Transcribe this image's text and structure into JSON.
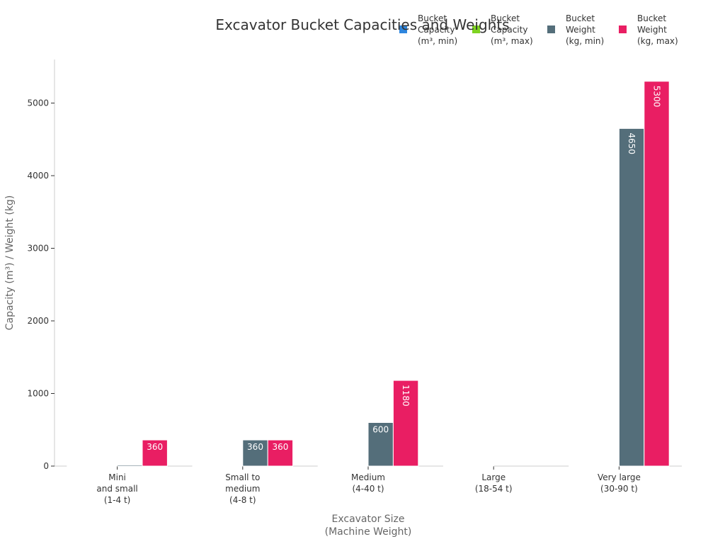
{
  "chart_data": {
    "type": "bar",
    "title": "Excavator Bucket Capacities and Weights",
    "xlabel": "Excavator Size\n(Machine Weight)",
    "ylabel": "Capacity (m³) / Weight (kg)",
    "categories": [
      "Mini\nand small\n(1-4 t)",
      "Small to\nmedium\n(4-8 t)",
      "Medium\n(4-40 t)",
      "Large\n(18-54 t)",
      "Very large\n(30-90 t)"
    ],
    "series": [
      {
        "name": "Bucket\nCapacity\n(m³, min)",
        "color": "#2E86DE",
        "values": [
          0.04,
          0.2,
          0.45,
          1.0,
          2.0
        ]
      },
      {
        "name": "Bucket\nCapacity\n(m³, max)",
        "color": "#7ED321",
        "values": [
          0.15,
          0.35,
          2.0,
          3.0,
          6.0
        ]
      },
      {
        "name": "Bucket\nWeight\n(kg, min)",
        "color": "#546E7A",
        "values": [
          15,
          360,
          600,
          0,
          4650
        ]
      },
      {
        "name": "Bucket\nWeight\n(kg, max)",
        "color": "#E91E63",
        "values": [
          360,
          360,
          1180,
          0,
          5300
        ]
      }
    ],
    "data_labels": {
      "shown": [
        [
          null,
          null,
          null,
          "360"
        ],
        [
          null,
          null,
          "360",
          "360"
        ],
        [
          null,
          null,
          "600",
          "1180"
        ],
        [
          null,
          null,
          null,
          null
        ],
        [
          null,
          null,
          "4650",
          "5300"
        ]
      ],
      "vertical": [
        [
          false,
          false,
          false,
          false
        ],
        [
          false,
          false,
          false,
          false
        ],
        [
          false,
          false,
          false,
          true
        ],
        [
          false,
          false,
          false,
          false
        ],
        [
          false,
          false,
          true,
          true
        ]
      ]
    },
    "ylim": [
      0,
      5600
    ],
    "yticks": [
      0,
      1000,
      2000,
      3000,
      4000,
      5000
    ],
    "grid": false,
    "legend_position": "top-right"
  }
}
